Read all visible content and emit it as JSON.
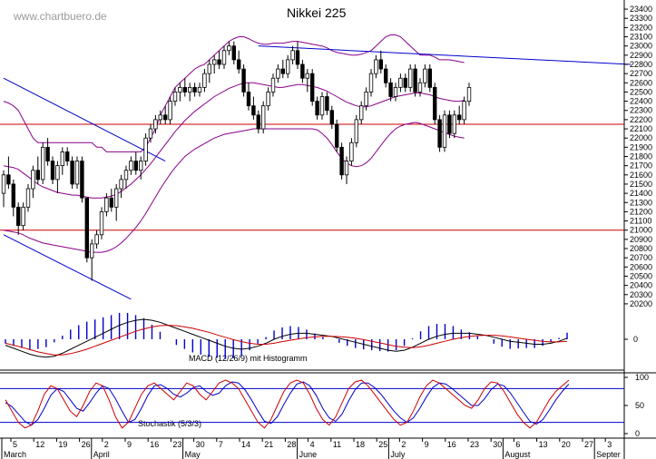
{
  "watermark": "www.chartbuero.de",
  "chart_data": {
    "type": "candlestick",
    "title": "Nikkei 225",
    "y_ticks": [
      20200,
      20300,
      20400,
      20500,
      20600,
      20700,
      20800,
      20900,
      21000,
      21100,
      21200,
      21300,
      21400,
      21500,
      21600,
      21700,
      21800,
      21900,
      22000,
      22100,
      22200,
      22300,
      22400,
      22500,
      22600,
      22700,
      22800,
      22900,
      23000,
      23100,
      23200,
      23300,
      23400
    ],
    "ylim": [
      20150,
      23450
    ],
    "x_day_labels": [
      "5",
      "12",
      "19",
      "26",
      "2",
      "9",
      "16",
      "23",
      "30",
      "7",
      "14",
      "21",
      "28",
      "4",
      "11",
      "18",
      "25",
      "2",
      "9",
      "16",
      "23",
      "30",
      "6",
      "13",
      "20",
      "27",
      "3"
    ],
    "x_month_labels": [
      "March",
      "April",
      "May",
      "June",
      "July",
      "August",
      "Septer"
    ],
    "horizontal_lines": [
      22150,
      21000
    ],
    "candles": [
      [
        21400,
        21650,
        21250,
        21600
      ],
      [
        21600,
        21800,
        21450,
        21500
      ],
      [
        21500,
        21550,
        21150,
        21250
      ],
      [
        21250,
        21300,
        20950,
        21050
      ],
      [
        21050,
        21300,
        21000,
        21250
      ],
      [
        21250,
        21500,
        21200,
        21450
      ],
      [
        21450,
        21700,
        21350,
        21650
      ],
      [
        21650,
        21800,
        21500,
        21550
      ],
      [
        21550,
        21950,
        21500,
        21900
      ],
      [
        21900,
        22000,
        21700,
        21750
      ],
      [
        21750,
        21800,
        21500,
        21550
      ],
      [
        21550,
        21750,
        21400,
        21700
      ],
      [
        21700,
        21900,
        21600,
        21850
      ],
      [
        21850,
        21900,
        21700,
        21750
      ],
      [
        21750,
        21800,
        21450,
        21500
      ],
      [
        21500,
        21800,
        21450,
        21750
      ],
      [
        21750,
        21800,
        21300,
        21350
      ],
      [
        21350,
        21350,
        20650,
        20700
      ],
      [
        20700,
        20900,
        20450,
        20850
      ],
      [
        20850,
        21000,
        20800,
        20950
      ],
      [
        20950,
        21250,
        20900,
        21200
      ],
      [
        21200,
        21400,
        21150,
        21350
      ],
      [
        21350,
        21450,
        21200,
        21250
      ],
      [
        21250,
        21500,
        21100,
        21450
      ],
      [
        21450,
        21600,
        21350,
        21550
      ],
      [
        21550,
        21700,
        21450,
        21650
      ],
      [
        21650,
        21800,
        21600,
        21750
      ],
      [
        21750,
        21850,
        21600,
        21650
      ],
      [
        21650,
        21800,
        21550,
        21750
      ],
      [
        21750,
        22050,
        21700,
        22000
      ],
      [
        22000,
        22150,
        21950,
        22100
      ],
      [
        22100,
        22250,
        22050,
        22200
      ],
      [
        22200,
        22300,
        22150,
        22250
      ],
      [
        22250,
        22350,
        22150,
        22200
      ],
      [
        22200,
        22450,
        22150,
        22400
      ],
      [
        22400,
        22550,
        22350,
        22500
      ],
      [
        22500,
        22600,
        22400,
        22550
      ],
      [
        22550,
        22650,
        22450,
        22500
      ],
      [
        22500,
        22600,
        22400,
        22550
      ],
      [
        22550,
        22600,
        22450,
        22500
      ],
      [
        22500,
        22600,
        22450,
        22550
      ],
      [
        22550,
        22750,
        22500,
        22700
      ],
      [
        22700,
        22850,
        22600,
        22800
      ],
      [
        22800,
        22900,
        22700,
        22850
      ],
      [
        22850,
        22950,
        22750,
        22800
      ],
      [
        22800,
        23000,
        22750,
        22950
      ],
      [
        22950,
        23050,
        22900,
        23000
      ],
      [
        23000,
        23050,
        22800,
        22850
      ],
      [
        22850,
        22950,
        22700,
        22750
      ],
      [
        22750,
        22800,
        22450,
        22500
      ],
      [
        22500,
        22600,
        22300,
        22350
      ],
      [
        22350,
        22450,
        22200,
        22250
      ],
      [
        22250,
        22300,
        22050,
        22100
      ],
      [
        22100,
        22400,
        22050,
        22350
      ],
      [
        22350,
        22550,
        22300,
        22500
      ],
      [
        22500,
        22700,
        22450,
        22650
      ],
      [
        22650,
        22800,
        22600,
        22750
      ],
      [
        22750,
        22850,
        22650,
        22700
      ],
      [
        22700,
        22900,
        22650,
        22850
      ],
      [
        22850,
        23000,
        22800,
        22950
      ],
      [
        22950,
        23050,
        22750,
        22800
      ],
      [
        22800,
        22850,
        22600,
        22650
      ],
      [
        22650,
        22750,
        22500,
        22700
      ],
      [
        22700,
        22750,
        22350,
        22400
      ],
      [
        22400,
        22450,
        22200,
        22250
      ],
      [
        22250,
        22500,
        22200,
        22450
      ],
      [
        22450,
        22500,
        22250,
        22300
      ],
      [
        22300,
        22350,
        22100,
        22150
      ],
      [
        22150,
        22200,
        21850,
        21900
      ],
      [
        21900,
        21950,
        21550,
        21600
      ],
      [
        21600,
        21800,
        21500,
        21750
      ],
      [
        21750,
        22000,
        21700,
        21950
      ],
      [
        21950,
        22250,
        21900,
        22200
      ],
      [
        22200,
        22400,
        22150,
        22350
      ],
      [
        22350,
        22550,
        22300,
        22500
      ],
      [
        22500,
        22750,
        22450,
        22700
      ],
      [
        22700,
        22900,
        22650,
        22850
      ],
      [
        22850,
        22950,
        22700,
        22750
      ],
      [
        22750,
        22800,
        22550,
        22600
      ],
      [
        22600,
        22650,
        22400,
        22450
      ],
      [
        22450,
        22600,
        22400,
        22550
      ],
      [
        22550,
        22700,
        22500,
        22650
      ],
      [
        22650,
        22700,
        22500,
        22550
      ],
      [
        22550,
        22800,
        22500,
        22750
      ],
      [
        22750,
        22800,
        22450,
        22500
      ],
      [
        22500,
        22650,
        22450,
        22600
      ],
      [
        22600,
        22800,
        22550,
        22750
      ],
      [
        22750,
        22800,
        22500,
        22550
      ],
      [
        22550,
        22600,
        22150,
        22200
      ],
      [
        22200,
        22250,
        21850,
        21900
      ],
      [
        21900,
        22300,
        21850,
        22250
      ],
      [
        22250,
        22300,
        22000,
        22050
      ],
      [
        22050,
        22300,
        22000,
        22250
      ],
      [
        22250,
        22350,
        22150,
        22200
      ],
      [
        22200,
        22450,
        22150,
        22400
      ],
      [
        22400,
        22600,
        22350,
        22550
      ]
    ],
    "bollinger_upper": [
      22400,
      22380,
      22350,
      22300,
      22200,
      22100,
      22000,
      21950,
      21950,
      21950,
      21950,
      21950,
      21950,
      21950,
      21950,
      21950,
      21950,
      21950,
      21950,
      21900,
      21900,
      21850,
      21850,
      21850,
      21850,
      21850,
      21850,
      21850,
      21850,
      21900,
      22000,
      22100,
      22250,
      22350,
      22450,
      22550,
      22600,
      22650,
      22700,
      22750,
      22780,
      22800,
      22850,
      22900,
      22950,
      23000,
      23050,
      23080,
      23100,
      23100,
      23080,
      23050,
      23030,
      23020,
      23020,
      23030,
      23030,
      23030,
      23040,
      23050,
      23050,
      23040,
      23030,
      23020,
      23010,
      23000,
      22980,
      22950,
      22930,
      22920,
      22910,
      22900,
      22900,
      22910,
      22930,
      22950,
      23000,
      23050,
      23100,
      23120,
      23120,
      23100,
      23050,
      23000,
      22950,
      22900,
      22900,
      22900,
      22880,
      22850,
      22850,
      22850,
      22840,
      22830,
      22820
    ],
    "bollinger_middle": [
      21700,
      21690,
      21680,
      21660,
      21620,
      21580,
      21540,
      21500,
      21470,
      21450,
      21430,
      21410,
      21400,
      21390,
      21380,
      21380,
      21370,
      21360,
      21350,
      21350,
      21350,
      21360,
      21370,
      21390,
      21420,
      21460,
      21500,
      21550,
      21600,
      21660,
      21720,
      21790,
      21860,
      21930,
      22000,
      22070,
      22130,
      22190,
      22240,
      22290,
      22330,
      22370,
      22410,
      22450,
      22480,
      22510,
      22540,
      22560,
      22580,
      22600,
      22600,
      22600,
      22590,
      22580,
      22570,
      22560,
      22550,
      22550,
      22560,
      22570,
      22580,
      22580,
      22570,
      22560,
      22550,
      22530,
      22510,
      22480,
      22450,
      22420,
      22390,
      22370,
      22350,
      22340,
      22340,
      22350,
      22370,
      22390,
      22410,
      22430,
      22450,
      22460,
      22470,
      22480,
      22490,
      22490,
      22480,
      22470,
      22450,
      22430,
      22420,
      22410,
      22400,
      22400,
      22410
    ],
    "bollinger_lower": [
      21000,
      20990,
      20980,
      20970,
      20950,
      20920,
      20900,
      20880,
      20860,
      20850,
      20840,
      20830,
      20820,
      20810,
      20800,
      20790,
      20780,
      20770,
      20760,
      20760,
      20760,
      20770,
      20790,
      20820,
      20860,
      20910,
      20970,
      21030,
      21100,
      21180,
      21270,
      21360,
      21450,
      21530,
      21610,
      21680,
      21740,
      21800,
      21840,
      21880,
      21910,
      21940,
      21970,
      22000,
      22020,
      22040,
      22050,
      22060,
      22070,
      22080,
      22090,
      22100,
      22100,
      22100,
      22100,
      22100,
      22100,
      22100,
      22100,
      22100,
      22100,
      22100,
      22100,
      22100,
      22090,
      22050,
      22000,
      21930,
      21850,
      21780,
      21730,
      21700,
      21690,
      21700,
      21730,
      21780,
      21850,
      21920,
      21990,
      22050,
      22100,
      22130,
      22150,
      22160,
      22170,
      22160,
      22140,
      22120,
      22100,
      22080,
      22060,
      22040,
      22020,
      22010,
      22000
    ],
    "trendlines": [
      {
        "from": [
          0,
          22650
        ],
        "to": [
          33,
          21750
        ]
      },
      {
        "from": [
          0,
          20950
        ],
        "to": [
          26,
          20250
        ]
      },
      {
        "from": [
          52,
          23000
        ],
        "to": [
          128,
          22800
        ]
      }
    ],
    "macd_label": "MACD (12/26/9) mit Histogramm",
    "macd": [
      -0.3,
      -0.45,
      -0.6,
      -0.75,
      -0.85,
      -0.9,
      -0.85,
      -0.7,
      -0.5,
      -0.3,
      -0.1,
      0.1,
      0.3,
      0.5,
      0.7,
      0.85,
      0.95,
      1.0,
      0.95,
      0.85,
      0.7,
      0.55,
      0.4,
      0.25,
      0.1,
      -0.05,
      -0.2,
      -0.35,
      -0.45,
      -0.5,
      -0.45,
      -0.35,
      -0.2,
      0,
      0.15,
      0.25,
      0.3,
      0.3,
      0.25,
      0.2,
      0.15,
      0.05,
      -0.05,
      -0.15,
      -0.25,
      -0.35,
      -0.45,
      -0.55,
      -0.6,
      -0.55,
      -0.4,
      -0.2,
      0,
      0.15,
      0.25,
      0.3,
      0.3,
      0.3,
      0.25,
      0.2,
      0.1,
      0,
      -0.1,
      -0.15,
      -0.2,
      -0.25,
      -0.25,
      -0.2,
      -0.1,
      0.05
    ],
    "macd_signal": [
      -0.2,
      -0.3,
      -0.4,
      -0.52,
      -0.63,
      -0.72,
      -0.78,
      -0.78,
      -0.72,
      -0.62,
      -0.5,
      -0.35,
      -0.2,
      -0.05,
      0.1,
      0.25,
      0.4,
      0.52,
      0.62,
      0.68,
      0.7,
      0.68,
      0.62,
      0.55,
      0.45,
      0.35,
      0.22,
      0.1,
      -0.02,
      -0.12,
      -0.2,
      -0.25,
      -0.25,
      -0.2,
      -0.12,
      -0.05,
      0.02,
      0.08,
      0.12,
      0.15,
      0.15,
      0.13,
      0.1,
      0.05,
      -0.02,
      -0.1,
      -0.18,
      -0.27,
      -0.35,
      -0.4,
      -0.42,
      -0.38,
      -0.3,
      -0.2,
      -0.1,
      0,
      0.08,
      0.14,
      0.18,
      0.2,
      0.2,
      0.17,
      0.12,
      0.06,
      0,
      -0.05,
      -0.1,
      -0.13,
      -0.13,
      -0.1
    ],
    "macd_zero_label": "0",
    "stoch_label": "Stochastik (5/3/3)",
    "stoch_levels": [
      80,
      20
    ],
    "stoch_ticks": [
      100,
      50,
      0
    ],
    "stoch_k": [
      60,
      40,
      20,
      10,
      15,
      40,
      70,
      85,
      80,
      60,
      40,
      30,
      50,
      75,
      90,
      85,
      60,
      30,
      10,
      20,
      45,
      70,
      85,
      90,
      80,
      70,
      60,
      75,
      90,
      85,
      70,
      60,
      75,
      90,
      95,
      90,
      80,
      60,
      40,
      20,
      10,
      25,
      50,
      75,
      90,
      95,
      90,
      70,
      45,
      25,
      15,
      30,
      55,
      80,
      92,
      95,
      85,
      70,
      55,
      40,
      25,
      15,
      20,
      40,
      65,
      85,
      95,
      90,
      80,
      70,
      60,
      50,
      45,
      60,
      80,
      92,
      90,
      75,
      55,
      35,
      20,
      10,
      20,
      40,
      60,
      75,
      85,
      95
    ],
    "stoch_d": [
      55,
      48,
      35,
      22,
      15,
      25,
      45,
      68,
      80,
      75,
      60,
      45,
      40,
      55,
      72,
      85,
      80,
      62,
      40,
      20,
      25,
      45,
      68,
      85,
      87,
      80,
      70,
      65,
      72,
      82,
      85,
      75,
      68,
      72,
      85,
      92,
      90,
      78,
      60,
      40,
      22,
      18,
      30,
      52,
      72,
      88,
      92,
      85,
      68,
      45,
      28,
      22,
      35,
      58,
      78,
      90,
      90,
      82,
      70,
      55,
      40,
      28,
      20,
      28,
      45,
      65,
      82,
      90,
      88,
      80,
      70,
      60,
      50,
      50,
      62,
      78,
      88,
      85,
      72,
      55,
      38,
      22,
      17,
      25,
      42,
      60,
      75,
      88
    ]
  }
}
